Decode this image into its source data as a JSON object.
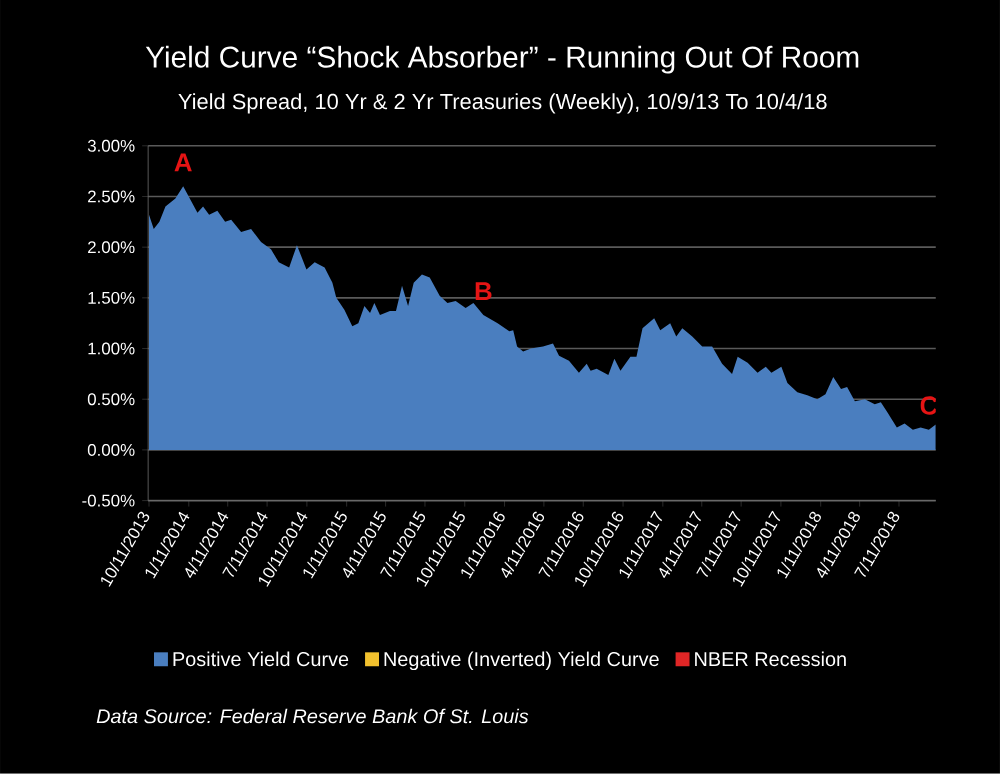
{
  "chart_data": {
    "type": "area",
    "title": "Yield Curve “Shock Absorber” - Running Out Of Room",
    "subtitle": "Yield Spread, 10 Yr & 2 Yr Treasuries (Weekly), 10/9/13 To 10/4/18",
    "x": [
      "2013-10-11",
      "2013-10-22",
      "2013-11-04",
      "2013-11-18",
      "2013-12-11",
      "2013-12-29",
      "2014-01-17",
      "2014-01-31",
      "2014-02-13",
      "2014-02-27",
      "2014-03-18",
      "2014-04-05",
      "2014-04-19",
      "2014-05-12",
      "2014-06-04",
      "2014-06-27",
      "2014-07-20",
      "2014-08-07",
      "2014-08-31",
      "2014-09-18",
      "2014-10-10",
      "2014-10-29",
      "2014-11-21",
      "2014-12-09",
      "2014-12-18",
      "2015-01-06",
      "2015-01-24",
      "2015-02-07",
      "2015-02-21",
      "2015-03-06",
      "2015-03-16",
      "2015-03-29",
      "2015-04-21",
      "2015-05-05",
      "2015-05-19",
      "2015-06-02",
      "2015-06-15",
      "2015-07-04",
      "2015-07-22",
      "2015-08-14",
      "2015-09-01",
      "2015-09-20",
      "2015-10-13",
      "2015-10-31",
      "2015-11-23",
      "2015-12-26",
      "2016-01-22",
      "2016-01-31",
      "2016-02-09",
      "2016-02-23",
      "2016-03-12",
      "2016-04-09",
      "2016-05-02",
      "2016-05-16",
      "2016-06-08",
      "2016-07-01",
      "2016-07-19",
      "2016-07-28",
      "2016-08-11",
      "2016-09-07",
      "2016-09-21",
      "2016-10-05",
      "2016-10-28",
      "2016-11-11",
      "2016-11-25",
      "2016-12-22",
      "2017-01-05",
      "2017-01-28",
      "2017-02-11",
      "2017-02-25",
      "2017-03-20",
      "2017-04-12",
      "2017-05-05",
      "2017-05-28",
      "2017-06-20",
      "2017-07-03",
      "2017-07-26",
      "2017-08-18",
      "2017-09-06",
      "2017-09-19",
      "2017-10-12",
      "2017-10-26",
      "2017-11-18",
      "2017-12-11",
      "2018-01-03",
      "2018-01-22",
      "2018-02-09",
      "2018-02-27",
      "2018-03-13",
      "2018-03-31",
      "2018-04-23",
      "2018-05-16",
      "2018-05-30",
      "2018-06-13",
      "2018-07-06",
      "2018-07-24",
      "2018-08-12",
      "2018-08-30",
      "2018-09-18",
      "2018-10-04"
    ],
    "series": [
      {
        "name": "Positive Yield Curve",
        "color": "#4a7ebf",
        "values": [
          2.32,
          2.18,
          2.25,
          2.4,
          2.48,
          2.6,
          2.45,
          2.34,
          2.4,
          2.32,
          2.36,
          2.25,
          2.27,
          2.15,
          2.18,
          2.05,
          1.98,
          1.85,
          1.8,
          2.02,
          1.78,
          1.85,
          1.8,
          1.65,
          1.5,
          1.38,
          1.22,
          1.25,
          1.42,
          1.35,
          1.45,
          1.33,
          1.37,
          1.37,
          1.62,
          1.42,
          1.65,
          1.73,
          1.7,
          1.52,
          1.45,
          1.47,
          1.4,
          1.45,
          1.33,
          1.25,
          1.17,
          1.18,
          1.02,
          0.97,
          1.0,
          1.02,
          1.05,
          0.93,
          0.88,
          0.76,
          0.85,
          0.78,
          0.8,
          0.74,
          0.9,
          0.78,
          0.92,
          0.92,
          1.2,
          1.3,
          1.18,
          1.25,
          1.12,
          1.2,
          1.12,
          1.02,
          1.02,
          0.85,
          0.75,
          0.92,
          0.86,
          0.76,
          0.82,
          0.76,
          0.82,
          0.66,
          0.57,
          0.54,
          0.5,
          0.55,
          0.72,
          0.6,
          0.62,
          0.48,
          0.5,
          0.45,
          0.47,
          0.38,
          0.22,
          0.26,
          0.2,
          0.22,
          0.2,
          0.25
        ]
      },
      {
        "name": "Negative (Inverted) Yield Curve",
        "color": "#f2c12e",
        "values": [
          null,
          null,
          null,
          null,
          null,
          null,
          null,
          null,
          null,
          null,
          null,
          null,
          null,
          null,
          null,
          null,
          null,
          null,
          null,
          null,
          null,
          null,
          null,
          null,
          null,
          null,
          null,
          null,
          null,
          null,
          null,
          null,
          null,
          null,
          null,
          null,
          null,
          null,
          null,
          null,
          null,
          null,
          null,
          null,
          null,
          null,
          null,
          null,
          null,
          null,
          null,
          null,
          null,
          null,
          null,
          null,
          null,
          null,
          null,
          null,
          null,
          null,
          null,
          null,
          null,
          null,
          null,
          null,
          null,
          null,
          null,
          null,
          null,
          null,
          null,
          null,
          null,
          null,
          null,
          null,
          null,
          null,
          null,
          null,
          null,
          null,
          null,
          null,
          null,
          null,
          null,
          null,
          null,
          null,
          null,
          null,
          null,
          null,
          null,
          null
        ]
      },
      {
        "name": "NBER Recession",
        "color": "#e02626",
        "values": [
          null,
          null,
          null,
          null,
          null,
          null,
          null,
          null,
          null,
          null,
          null,
          null,
          null,
          null,
          null,
          null,
          null,
          null,
          null,
          null,
          null,
          null,
          null,
          null,
          null,
          null,
          null,
          null,
          null,
          null,
          null,
          null,
          null,
          null,
          null,
          null,
          null,
          null,
          null,
          null,
          null,
          null,
          null,
          null,
          null,
          null,
          null,
          null,
          null,
          null,
          null,
          null,
          null,
          null,
          null,
          null,
          null,
          null,
          null,
          null,
          null,
          null,
          null,
          null,
          null,
          null,
          null,
          null,
          null,
          null,
          null,
          null,
          null,
          null,
          null,
          null,
          null,
          null,
          null,
          null,
          null,
          null,
          null,
          null,
          null,
          null,
          null,
          null,
          null,
          null,
          null,
          null,
          null,
          null,
          null,
          null,
          null,
          null,
          null,
          null
        ]
      }
    ],
    "xlim": [
      "2013-10-09",
      "2018-10-04"
    ],
    "xticks": [
      {
        "value": "2013-10-11",
        "label": "10/11/2013"
      },
      {
        "value": "2014-01-11",
        "label": "1/11/2014"
      },
      {
        "value": "2014-04-11",
        "label": "4/11/2014"
      },
      {
        "value": "2014-07-11",
        "label": "7/11/2014"
      },
      {
        "value": "2014-10-11",
        "label": "10/11/2014"
      },
      {
        "value": "2015-01-11",
        "label": "1/11/2015"
      },
      {
        "value": "2015-04-11",
        "label": "4/11/2015"
      },
      {
        "value": "2015-07-11",
        "label": "7/11/2015"
      },
      {
        "value": "2015-10-11",
        "label": "10/11/2015"
      },
      {
        "value": "2016-01-11",
        "label": "1/11/2016"
      },
      {
        "value": "2016-04-11",
        "label": "4/11/2016"
      },
      {
        "value": "2016-07-11",
        "label": "7/11/2016"
      },
      {
        "value": "2016-10-11",
        "label": "10/11/2016"
      },
      {
        "value": "2017-01-11",
        "label": "1/11/2017"
      },
      {
        "value": "2017-04-11",
        "label": "4/11/2017"
      },
      {
        "value": "2017-07-11",
        "label": "7/11/2017"
      },
      {
        "value": "2017-10-11",
        "label": "10/11/2017"
      },
      {
        "value": "2018-01-11",
        "label": "1/11/2018"
      },
      {
        "value": "2018-04-11",
        "label": "4/11/2018"
      },
      {
        "value": "2018-07-11",
        "label": "7/11/2018"
      }
    ],
    "ylim": [
      -0.5,
      3
    ],
    "yticks": [
      {
        "value": -0.5,
        "label": "-0.50%"
      },
      {
        "value": 0,
        "label": "0.00%"
      },
      {
        "value": 0.5,
        "label": "0.50%"
      },
      {
        "value": 1,
        "label": "1.00%"
      },
      {
        "value": 1.5,
        "label": "1.50%"
      },
      {
        "value": 2,
        "label": "2.00%"
      },
      {
        "value": 2.5,
        "label": "2.50%"
      },
      {
        "value": 3,
        "label": "3.00%"
      }
    ],
    "grid": "y",
    "legend": "bottom",
    "annotations": [
      {
        "text": "A",
        "x": "2013-12-29",
        "y": 2.6
      },
      {
        "text": "B",
        "x": "2015-11-23",
        "y": 1.33
      },
      {
        "text": "C",
        "x": "2018-09-18",
        "y": 0.2
      },
      "*Data Source:  Federal Reserve Bank Of St. Louis*"
    ]
  }
}
